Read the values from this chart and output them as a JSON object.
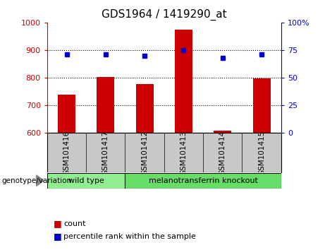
{
  "title": "GDS1964 / 1419290_at",
  "categories": [
    "GSM101416",
    "GSM101417",
    "GSM101412",
    "GSM101413",
    "GSM101414",
    "GSM101415"
  ],
  "bar_values": [
    737,
    803,
    775,
    975,
    607,
    797
  ],
  "percentile_values": [
    71,
    71,
    70,
    75,
    68,
    71
  ],
  "bar_color": "#cc0000",
  "dot_color": "#0000cc",
  "ylim_left": [
    600,
    1000
  ],
  "ylim_right": [
    0,
    100
  ],
  "yticks_left": [
    600,
    700,
    800,
    900,
    1000
  ],
  "yticks_right": [
    0,
    25,
    50,
    75,
    100
  ],
  "grid_values": [
    700,
    800,
    900
  ],
  "group_label": "genotype/variation",
  "legend_count_label": "count",
  "legend_pct_label": "percentile rank within the sample",
  "background_color": "#ffffff",
  "tick_area_color": "#c8c8c8",
  "bar_width": 0.45,
  "title_fontsize": 11,
  "tick_fontsize": 8,
  "wild_type_color": "#90ee90",
  "knockout_color": "#66dd66",
  "group_bounds": [
    [
      -0.5,
      1.5,
      "wild type"
    ],
    [
      1.5,
      5.5,
      "melanotransferrin knockout"
    ]
  ]
}
